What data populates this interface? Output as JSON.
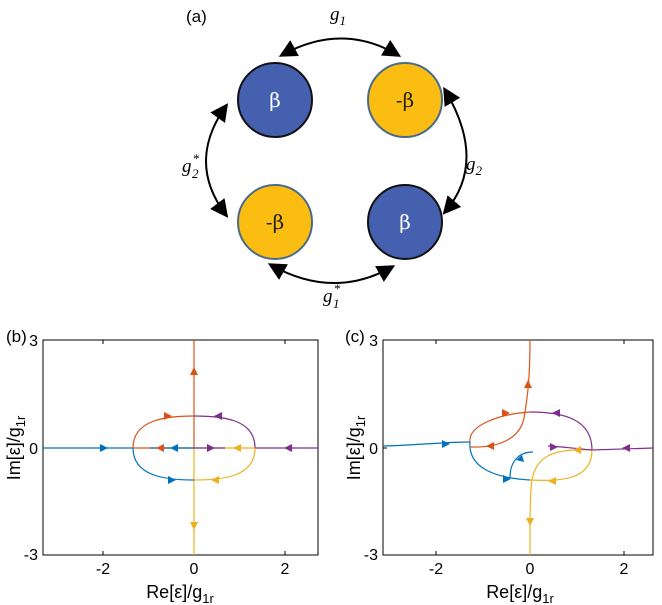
{
  "panel_a": {
    "label": "(a)",
    "nodes": [
      {
        "text": "β",
        "color": "#4460ae"
      },
      {
        "text": "-β",
        "color": "#fcbd13"
      },
      {
        "text": "-β",
        "color": "#fcbd13"
      },
      {
        "text": "β",
        "color": "#4460ae"
      }
    ],
    "couplings": {
      "top": {
        "base": "g",
        "sub": "1",
        "sup": ""
      },
      "right": {
        "base": "g",
        "sub": "2",
        "sup": ""
      },
      "left": {
        "base": "g",
        "sub": "2",
        "sup": "*"
      },
      "bottom": {
        "base": "g",
        "sub": "1",
        "sup": "*"
      }
    }
  },
  "panel_b": {
    "label": "(b)"
  },
  "panel_c": {
    "label": "(c)"
  },
  "axes": {
    "xlabel": "Re[ε]/g",
    "xlabel_sub": "1r",
    "ylabel": "Im[ε]/g",
    "ylabel_sub": "1r",
    "xticks": [
      "-2",
      "0",
      "2"
    ],
    "yticks": [
      "3",
      "0",
      "-3"
    ]
  },
  "colors": {
    "red": "#d95319",
    "blue": "#0072bd",
    "yellow": "#edb120",
    "purple": "#7e2f8e"
  }
}
